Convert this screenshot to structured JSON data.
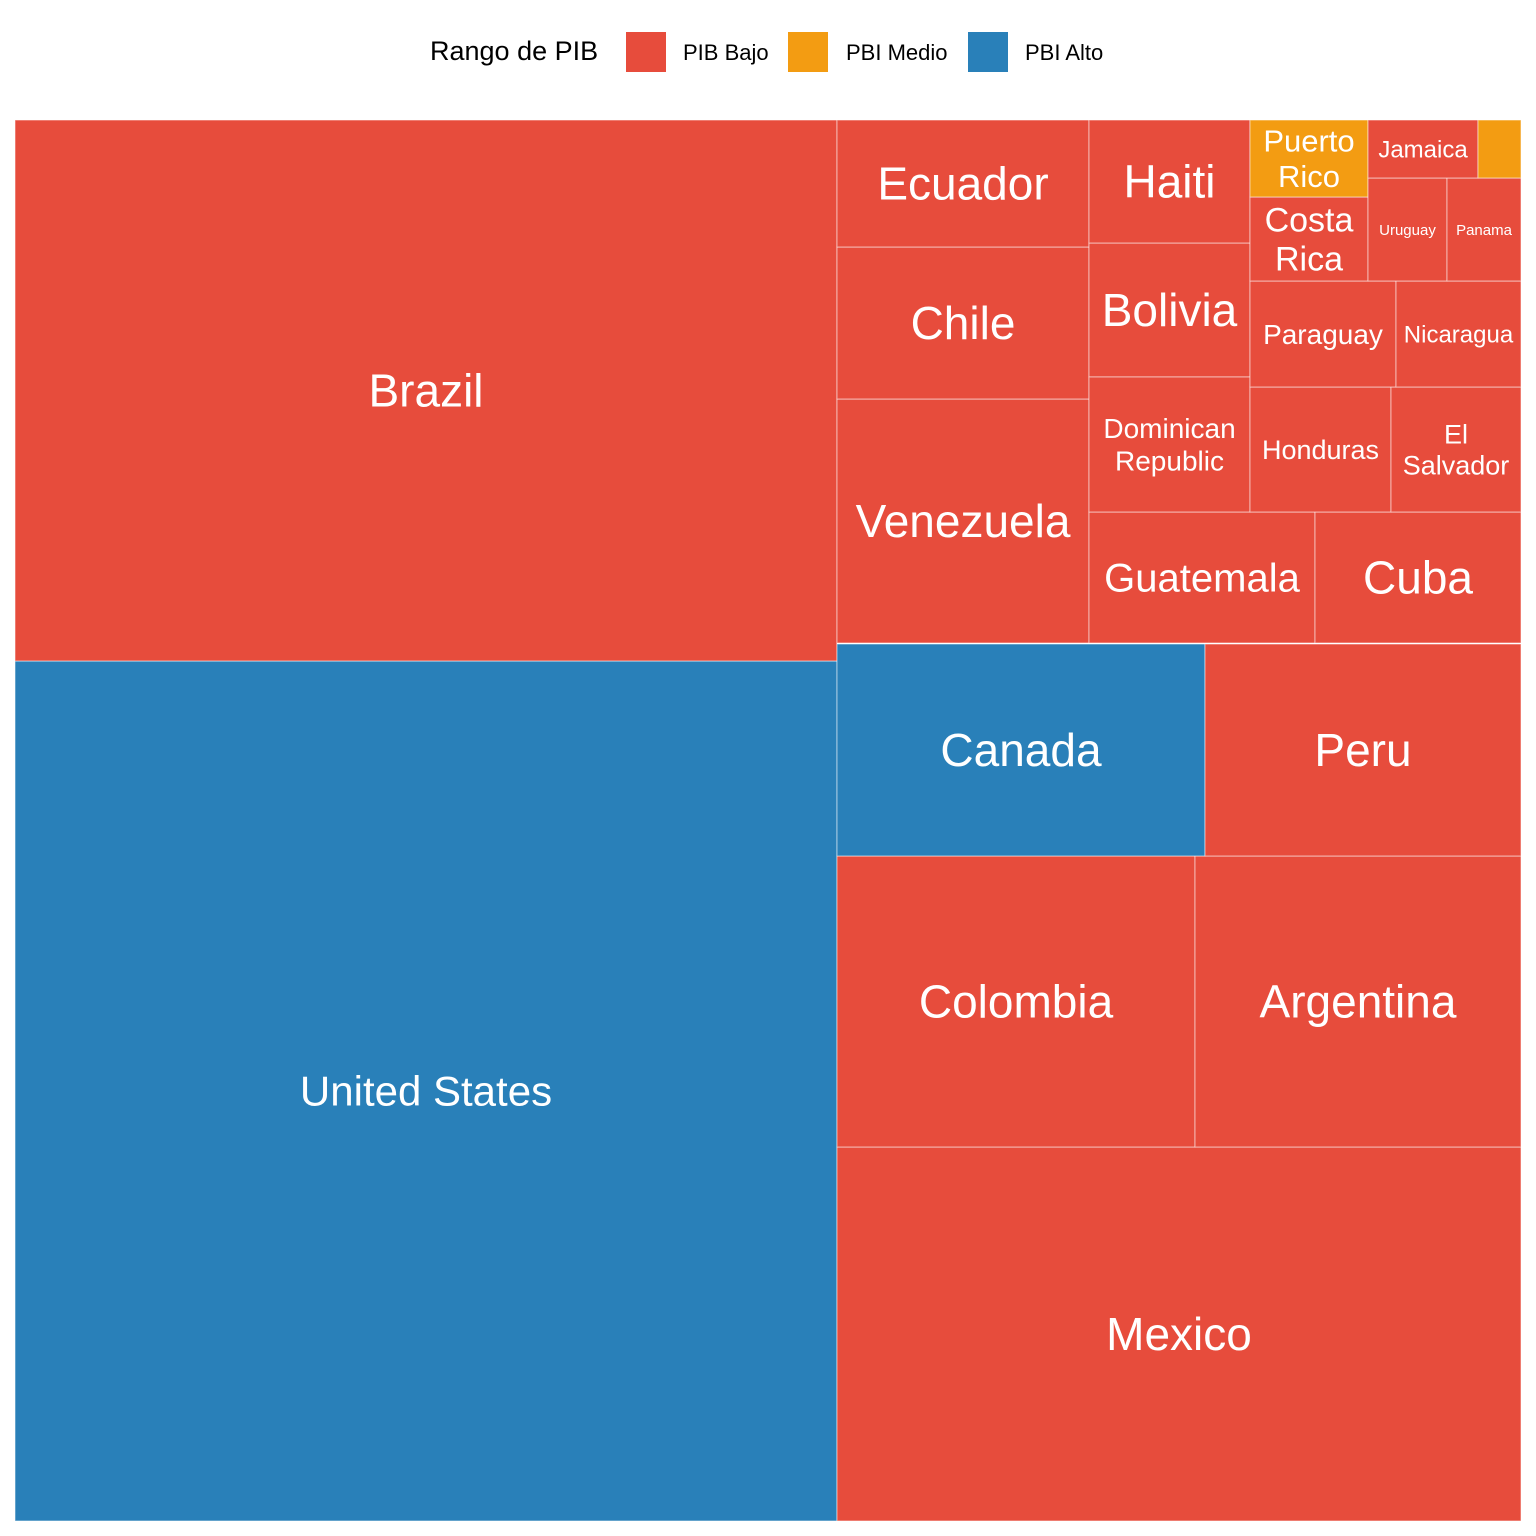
{
  "legend": {
    "title": "Rango de PIB",
    "items": [
      {
        "label": "PIB Bajo",
        "color": "#e74c3c"
      },
      {
        "label": "PBI Medio",
        "color": "#f39c12"
      },
      {
        "label": "PBI Alto",
        "color": "#2980b9"
      }
    ]
  },
  "chart_data": {
    "type": "treemap",
    "legend_position": "top",
    "categories": [
      "PIB Bajo",
      "PBI Medio",
      "PBI Alto"
    ],
    "items": [
      {
        "name": "United States",
        "category": "PBI Alto"
      },
      {
        "name": "Brazil",
        "category": "PIB Bajo"
      },
      {
        "name": "Mexico",
        "category": "PIB Bajo"
      },
      {
        "name": "Colombia",
        "category": "PIB Bajo"
      },
      {
        "name": "Argentina",
        "category": "PIB Bajo"
      },
      {
        "name": "Canada",
        "category": "PBI Alto"
      },
      {
        "name": "Peru",
        "category": "PIB Bajo"
      },
      {
        "name": "Venezuela",
        "category": "PIB Bajo"
      },
      {
        "name": "Chile",
        "category": "PIB Bajo"
      },
      {
        "name": "Ecuador",
        "category": "PIB Bajo"
      },
      {
        "name": "Guatemala",
        "category": "PIB Bajo"
      },
      {
        "name": "Cuba",
        "category": "PIB Bajo"
      },
      {
        "name": "Bolivia",
        "category": "PIB Bajo"
      },
      {
        "name": "Haiti",
        "category": "PIB Bajo"
      },
      {
        "name": "Dominican Republic",
        "category": "PIB Bajo"
      },
      {
        "name": "Honduras",
        "category": "PIB Bajo"
      },
      {
        "name": "El Salvador",
        "category": "PIB Bajo"
      },
      {
        "name": "Paraguay",
        "category": "PIB Bajo"
      },
      {
        "name": "Nicaragua",
        "category": "PIB Bajo"
      },
      {
        "name": "Costa Rica",
        "category": "PIB Bajo"
      },
      {
        "name": "Puerto Rico",
        "category": "PBI Medio"
      },
      {
        "name": "Uruguay",
        "category": "PIB Bajo"
      },
      {
        "name": "Panama",
        "category": "PIB Bajo"
      },
      {
        "name": "Jamaica",
        "category": "PIB Bajo"
      },
      {
        "name": "",
        "category": "PBI Medio"
      }
    ]
  }
}
